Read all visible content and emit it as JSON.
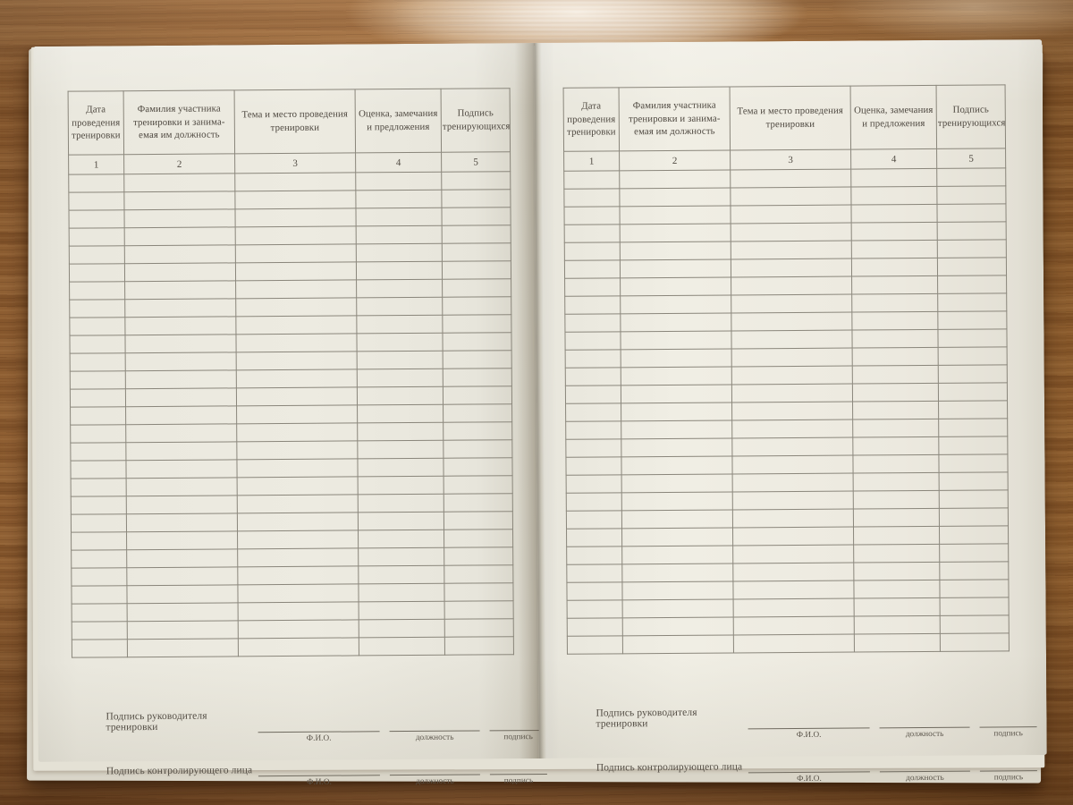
{
  "scene": {
    "description": "blank Russian training logbook spread lying open on a wooden table",
    "colors": {
      "wood": "#9c6a3c",
      "paper": "#edebe1",
      "table_line": "#8a867b",
      "ink": "#4f4941"
    }
  },
  "form": {
    "columns": [
      {
        "num": "1",
        "title": "Дата\nпроведения\nтренировки"
      },
      {
        "num": "2",
        "title": "Фамилия участника\nтренировки и занима-\nемая им должность"
      },
      {
        "num": "3",
        "title": "Тема и место проведения\nтренировки"
      },
      {
        "num": "4",
        "title": "Оценка, замечания\nи предложения"
      },
      {
        "num": "5",
        "title": "Подпись\nтренирующихся"
      }
    ],
    "empty_row_count": 27,
    "signature_rows": [
      {
        "label": "Подпись руководителя тренировки"
      },
      {
        "label": "Подпись контролирующего лица"
      }
    ],
    "signature_fields": [
      "Ф.И.О.",
      "должность",
      "подпись"
    ]
  }
}
